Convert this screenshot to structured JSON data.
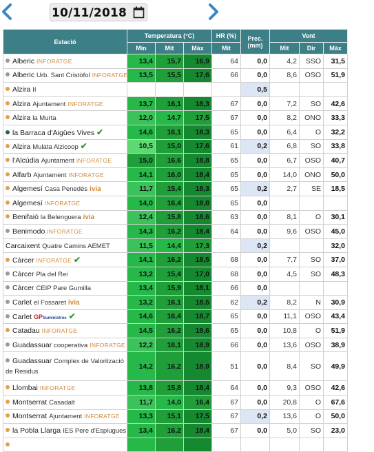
{
  "date": {
    "value": "10/11/2018"
  },
  "table": {
    "headers": {
      "station": "Estació",
      "temperature": "Temperatura (°C)",
      "humidity": "HR (%)",
      "precip": "Prec. (mm)",
      "wind": "Vent",
      "min": "Mín",
      "mit": "Mit",
      "max": "Màx",
      "hr_mit": "Mit",
      "wind_mit": "Mit",
      "wind_dir": "Dir",
      "wind_max": "Màx"
    },
    "rows": [
      {
        "dot": "#9a9a9a",
        "name": "Alberic",
        "sub": "",
        "tag": "INFORATGE",
        "tagType": "inf",
        "check": false,
        "tmin": "13,4",
        "tmit": "15,7",
        "tmax": "16,9",
        "cmin": "#27b84a",
        "cmit": "#1f9e3a",
        "cmax": "#14892f",
        "hr": "64",
        "prec": "0,0",
        "rain": false,
        "vmit": "4,2",
        "vdir": "SSO",
        "vmax": "31,5"
      },
      {
        "dot": "#9a9a9a",
        "name": "Alberic",
        "sub": "Urb. Sant Cristòfol",
        "tag": "INFORATGE",
        "tagType": "inf",
        "check": false,
        "tmin": "13,5",
        "tmit": "15,5",
        "tmax": "17,6",
        "cmin": "#27b84a",
        "cmit": "#1f9e3a",
        "cmax": "#14892f",
        "hr": "66",
        "prec": "0,0",
        "rain": false,
        "vmit": "8,6",
        "vdir": "OSO",
        "vmax": "51,9"
      },
      {
        "dot": "#e0a24a",
        "name": "Alzira",
        "sub": "II",
        "tag": "",
        "tagType": "",
        "check": false,
        "tmin": "",
        "tmit": "",
        "tmax": "",
        "cmin": "#ffffff",
        "cmit": "#ffffff",
        "cmax": "#ffffff",
        "hr": "",
        "prec": "0,5",
        "rain": true,
        "vmit": "",
        "vdir": "",
        "vmax": ""
      },
      {
        "dot": "#e0a24a",
        "name": "Alzira",
        "sub": "Ajuntament",
        "tag": "INFORATGE",
        "tagType": "inf",
        "check": false,
        "tmin": "13,7",
        "tmit": "16,1",
        "tmax": "18,3",
        "cmin": "#27b84a",
        "cmit": "#1f9e3a",
        "cmax": "#14892f",
        "hr": "67",
        "prec": "0,0",
        "rain": false,
        "vmit": "7,2",
        "vdir": "SO",
        "vmax": "42,6"
      },
      {
        "dot": "#e0a24a",
        "name": "Alzira",
        "sub": "la Murta",
        "tag": "",
        "tagType": "",
        "check": false,
        "tmin": "12,0",
        "tmit": "14,7",
        "tmax": "17,5",
        "cmin": "#3cc25a",
        "cmit": "#27b84a",
        "cmax": "#1f9e3a",
        "hr": "67",
        "prec": "0,0",
        "rain": false,
        "vmit": "8,2",
        "vdir": "ONO",
        "vmax": "33,3"
      },
      {
        "dot": "#2a5e63",
        "name": "la Barraca d'Aigües Vives",
        "sub": "",
        "tag": "",
        "tagType": "",
        "check": true,
        "tmin": "14,6",
        "tmit": "16,1",
        "tmax": "18,3",
        "cmin": "#27b84a",
        "cmit": "#1f9e3a",
        "cmax": "#14892f",
        "hr": "65",
        "prec": "0,0",
        "rain": false,
        "vmit": "6,4",
        "vdir": "O",
        "vmax": "32,2"
      },
      {
        "dot": "#e0a24a",
        "name": "Alzira",
        "sub": "Mulata Alzicoop",
        "tag": "",
        "tagType": "",
        "check": true,
        "tmin": "10,5",
        "tmit": "15,0",
        "tmax": "17,6",
        "cmin": "#5ed870",
        "cmit": "#1f9e3a",
        "cmax": "#14892f",
        "hr": "61",
        "prec": "0,2",
        "rain": true,
        "vmit": "6,8",
        "vdir": "SO",
        "vmax": "33,8"
      },
      {
        "dot": "#e0a24a",
        "name": "l'Alcúdia",
        "sub": "Ajuntament",
        "tag": "INFORATGE",
        "tagType": "inf",
        "check": false,
        "tmin": "15,0",
        "tmit": "16,6",
        "tmax": "18,8",
        "cmin": "#1f9e3a",
        "cmit": "#1f9e3a",
        "cmax": "#14892f",
        "hr": "65",
        "prec": "0,0",
        "rain": false,
        "vmit": "6,7",
        "vdir": "OSO",
        "vmax": "40,7"
      },
      {
        "dot": "#e0a24a",
        "name": "Alfarb",
        "sub": "Ajuntament",
        "tag": "INFORATGE",
        "tagType": "inf",
        "check": false,
        "tmin": "14,1",
        "tmit": "16,0",
        "tmax": "18,4",
        "cmin": "#27b84a",
        "cmit": "#1f9e3a",
        "cmax": "#14892f",
        "hr": "65",
        "prec": "0,0",
        "rain": false,
        "vmit": "14,0",
        "vdir": "ONO",
        "vmax": "50,0"
      },
      {
        "dot": "#e0a24a",
        "name": "Algemesí",
        "sub": "Casa Penedés",
        "tag": "ivia",
        "tagType": "ivia",
        "check": false,
        "tmin": "11,7",
        "tmit": "15,4",
        "tmax": "18,3",
        "cmin": "#3cc25a",
        "cmit": "#1f9e3a",
        "cmax": "#14892f",
        "hr": "65",
        "prec": "0,2",
        "rain": true,
        "vmit": "2,7",
        "vdir": "SE",
        "vmax": "18,5"
      },
      {
        "dot": "#e0a24a",
        "name": "Algemesí",
        "sub": "",
        "tag": "INFORATGE",
        "tagType": "inf",
        "check": false,
        "tmin": "14,0",
        "tmit": "16,4",
        "tmax": "18,8",
        "cmin": "#27b84a",
        "cmit": "#1f9e3a",
        "cmax": "#14892f",
        "hr": "65",
        "prec": "0,0",
        "rain": false,
        "vmit": "",
        "vdir": "",
        "vmax": ""
      },
      {
        "dot": "#e0a24a",
        "name": "Benifaió",
        "sub": "la Belenguera",
        "tag": "ivia",
        "tagType": "ivia",
        "check": false,
        "tmin": "12,4",
        "tmit": "15,8",
        "tmax": "18,6",
        "cmin": "#3cc25a",
        "cmit": "#1f9e3a",
        "cmax": "#14892f",
        "hr": "63",
        "prec": "0,0",
        "rain": false,
        "vmit": "8,1",
        "vdir": "O",
        "vmax": "30,1"
      },
      {
        "dot": "#9a9a9a",
        "name": "Benimodo",
        "sub": "",
        "tag": "INFORATGE",
        "tagType": "inf",
        "check": false,
        "tmin": "14,3",
        "tmit": "16,2",
        "tmax": "18,4",
        "cmin": "#27b84a",
        "cmit": "#1f9e3a",
        "cmax": "#14892f",
        "hr": "64",
        "prec": "0,0",
        "rain": false,
        "vmit": "9,6",
        "vdir": "OSO",
        "vmax": "45,0"
      },
      {
        "dot": "",
        "name": "Carcaixent",
        "sub": "Quatre Camins AEMET",
        "tag": "",
        "tagType": "",
        "check": false,
        "tmin": "11,5",
        "tmit": "14,4",
        "tmax": "17,3",
        "cmin": "#3cc25a",
        "cmit": "#27b84a",
        "cmax": "#1f9e3a",
        "hr": "",
        "prec": "0,2",
        "rain": true,
        "vmit": "",
        "vdir": "",
        "vmax": "32,0"
      },
      {
        "dot": "#e0a24a",
        "name": "Càrcer",
        "sub": "",
        "tag": "INFORATGE",
        "tagType": "inf",
        "check": true,
        "tmin": "14,1",
        "tmit": "16,2",
        "tmax": "18,5",
        "cmin": "#27b84a",
        "cmit": "#1f9e3a",
        "cmax": "#14892f",
        "hr": "68",
        "prec": "0,0",
        "rain": false,
        "vmit": "7,7",
        "vdir": "SO",
        "vmax": "37,0"
      },
      {
        "dot": "#9a9a9a",
        "name": "Càrcer",
        "sub": "Pla del Rei",
        "tag": "",
        "tagType": "",
        "check": false,
        "tmin": "13,2",
        "tmit": "15,4",
        "tmax": "17,0",
        "cmin": "#27b84a",
        "cmit": "#1f9e3a",
        "cmax": "#14892f",
        "hr": "68",
        "prec": "0,0",
        "rain": false,
        "vmit": "4,5",
        "vdir": "SO",
        "vmax": "48,3"
      },
      {
        "dot": "#9a9a9a",
        "name": "Càrcer",
        "sub": "CEIP Pare Gumilla",
        "tag": "",
        "tagType": "",
        "check": false,
        "tmin": "13,4",
        "tmit": "15,9",
        "tmax": "18,1",
        "cmin": "#27b84a",
        "cmit": "#1f9e3a",
        "cmax": "#14892f",
        "hr": "66",
        "prec": "0,0",
        "rain": false,
        "vmit": "",
        "vdir": "",
        "vmax": ""
      },
      {
        "dot": "#9a9a9a",
        "name": "Carlet",
        "sub": "el Fossaret",
        "tag": "ivia",
        "tagType": "ivia",
        "check": false,
        "tmin": "13,2",
        "tmit": "16,1",
        "tmax": "18,5",
        "cmin": "#27b84a",
        "cmit": "#1f9e3a",
        "cmax": "#14892f",
        "hr": "62",
        "prec": "0,2",
        "rain": true,
        "vmit": "8,2",
        "vdir": "N",
        "vmax": "30,9"
      },
      {
        "dot": "#9a9a9a",
        "name": "Carlet",
        "sub": "",
        "tag": "GP",
        "tagType": "gp",
        "check": true,
        "tmin": "14,6",
        "tmit": "16,4",
        "tmax": "18,7",
        "cmin": "#27b84a",
        "cmit": "#1f9e3a",
        "cmax": "#14892f",
        "hr": "65",
        "prec": "0,0",
        "rain": false,
        "vmit": "11,1",
        "vdir": "OSO",
        "vmax": "43,4"
      },
      {
        "dot": "#e0a24a",
        "name": "Catadau",
        "sub": "",
        "tag": "INFORATGE",
        "tagType": "inf",
        "check": false,
        "tmin": "14,5",
        "tmit": "16,2",
        "tmax": "18,6",
        "cmin": "#27b84a",
        "cmit": "#1f9e3a",
        "cmax": "#14892f",
        "hr": "65",
        "prec": "0,0",
        "rain": false,
        "vmit": "10,8",
        "vdir": "O",
        "vmax": "51,9"
      },
      {
        "dot": "#9a9a9a",
        "name": "Guadassuar",
        "sub": "cooperativa",
        "tag": "INFORATGE",
        "tagType": "inf",
        "check": false,
        "tmin": "12,2",
        "tmit": "16,1",
        "tmax": "18,9",
        "cmin": "#3cc25a",
        "cmit": "#1f9e3a",
        "cmax": "#14892f",
        "hr": "66",
        "prec": "0,0",
        "rain": false,
        "vmit": "13,6",
        "vdir": "OSO",
        "vmax": "38,9"
      },
      {
        "dot": "#9a9a9a",
        "name": "Guadassuar",
        "sub": "Complex de Valorització de Residus",
        "tag": "",
        "tagType": "",
        "check": false,
        "tall": true,
        "tmin": "14,2",
        "tmit": "16,2",
        "tmax": "18,9",
        "cmin": "#27b84a",
        "cmit": "#1f9e3a",
        "cmax": "#14892f",
        "hr": "51",
        "prec": "0,0",
        "rain": false,
        "vmit": "8,4",
        "vdir": "SO",
        "vmax": "49,9"
      },
      {
        "dot": "#e0a24a",
        "name": "Llombai",
        "sub": "",
        "tag": "INFORATGE",
        "tagType": "inf",
        "check": false,
        "tmin": "13,8",
        "tmit": "15,8",
        "tmax": "18,4",
        "cmin": "#27b84a",
        "cmit": "#1f9e3a",
        "cmax": "#14892f",
        "hr": "64",
        "prec": "0,0",
        "rain": false,
        "vmit": "9,3",
        "vdir": "OSO",
        "vmax": "42,6"
      },
      {
        "dot": "#e0a24a",
        "name": "Montserrat",
        "sub": "Casadalt",
        "tag": "",
        "tagType": "",
        "check": false,
        "tmin": "11,7",
        "tmit": "14,0",
        "tmax": "16,4",
        "cmin": "#3cc25a",
        "cmit": "#27b84a",
        "cmax": "#1f9e3a",
        "hr": "67",
        "prec": "0,0",
        "rain": false,
        "vmit": "20,8",
        "vdir": "O",
        "vmax": "67,6"
      },
      {
        "dot": "#e0a24a",
        "name": "Montserrat",
        "sub": "Ajuntament",
        "tag": "INFORATGE",
        "tagType": "inf",
        "check": false,
        "tmin": "13,3",
        "tmit": "15,1",
        "tmax": "17,5",
        "cmin": "#27b84a",
        "cmit": "#1f9e3a",
        "cmax": "#14892f",
        "hr": "67",
        "prec": "0,2",
        "rain": true,
        "vmit": "13,6",
        "vdir": "O",
        "vmax": "50,0"
      },
      {
        "dot": "#e0a24a",
        "name": "la Pobla Llarga",
        "sub": "IES Pere d'Esplugues",
        "tag": "",
        "tagType": "",
        "check": false,
        "tmin": "13,4",
        "tmit": "16,2",
        "tmax": "18,4",
        "cmin": "#27b84a",
        "cmit": "#1f9e3a",
        "cmax": "#14892f",
        "hr": "67",
        "prec": "0,0",
        "rain": false,
        "vmit": "5,0",
        "vdir": "SO",
        "vmax": "23,0"
      },
      {
        "dot": "#e0a24a",
        "name": "",
        "sub": "",
        "tag": "",
        "tagType": "",
        "check": false,
        "tmin": "",
        "tmit": "",
        "tmax": "",
        "cmin": "#27b84a",
        "cmit": "#1f9e3a",
        "cmax": "#14892f",
        "hr": "",
        "prec": "",
        "rain": false,
        "vmit": "",
        "vdir": "",
        "vmax": ""
      }
    ]
  }
}
